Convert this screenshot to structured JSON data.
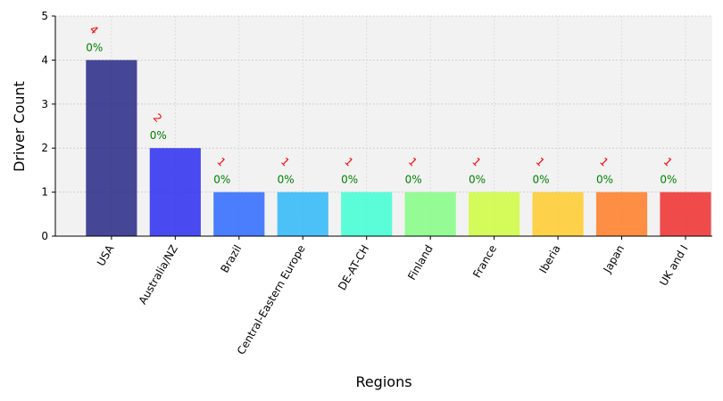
{
  "chart_data": {
    "type": "bar",
    "title": "",
    "xlabel": "Regions",
    "ylabel": "Driver Count",
    "ylim": [
      0,
      5
    ],
    "yticks": [
      "0",
      "1",
      "2",
      "3",
      "4",
      "5"
    ],
    "grid": true,
    "categories": [
      "USA",
      "Australia/NZ",
      "Brazil",
      "Central-Eastern Europe",
      "DE-AT-CH",
      "Finland",
      "France",
      "Iberia",
      "Japan",
      "UK and I"
    ],
    "values": [
      4,
      2,
      1,
      1,
      1,
      1,
      1,
      1,
      1,
      1
    ],
    "count_labels": [
      "4",
      "2",
      "1",
      "1",
      "1",
      "1",
      "1",
      "1",
      "1",
      "1"
    ],
    "percent_labels": [
      "0%",
      "0%",
      "0%",
      "0%",
      "0%",
      "0%",
      "0%",
      "0%",
      "0%",
      "0%"
    ],
    "colors": [
      "#1a1a80",
      "#1f1ff0",
      "#2060ff",
      "#22b4f8",
      "#33ffd0",
      "#7dfc7d",
      "#cdfd33",
      "#ffc81e",
      "#ff7416",
      "#ee2020"
    ],
    "plot_background": "#f2f2f2"
  }
}
